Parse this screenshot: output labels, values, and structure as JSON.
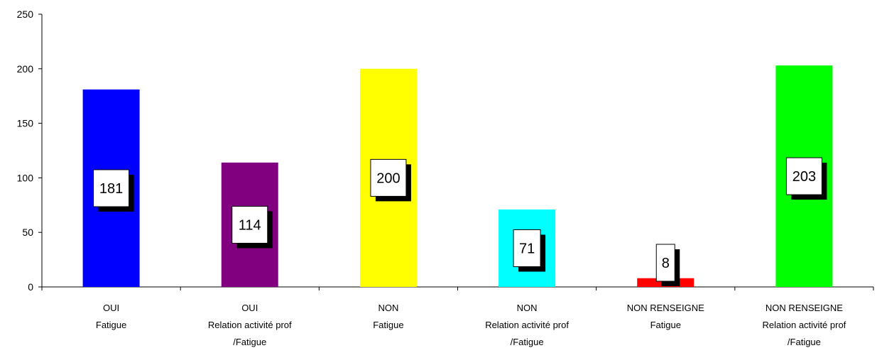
{
  "chart_data": {
    "type": "bar",
    "categories": [
      [
        "OUI",
        "Fatigue"
      ],
      [
        "OUI",
        "Relation activité prof",
        "/Fatigue"
      ],
      [
        "NON",
        "Fatigue"
      ],
      [
        "NON",
        "Relation activité prof",
        "/Fatigue"
      ],
      [
        "NON RENSEIGNE",
        "Fatigue"
      ],
      [
        "NON RENSEIGNE",
        "Relation activité prof",
        "/Fatigue"
      ]
    ],
    "values": [
      181,
      114,
      200,
      71,
      8,
      203
    ],
    "colors": [
      "#0000ff",
      "#800080",
      "#ffff00",
      "#00ffff",
      "#ff0000",
      "#00ff00"
    ],
    "ylim": [
      0,
      250
    ],
    "yticks": [
      0,
      50,
      100,
      150,
      200,
      250
    ],
    "title": "",
    "xlabel": "",
    "ylabel": "",
    "grid": false,
    "data_labels": true
  }
}
